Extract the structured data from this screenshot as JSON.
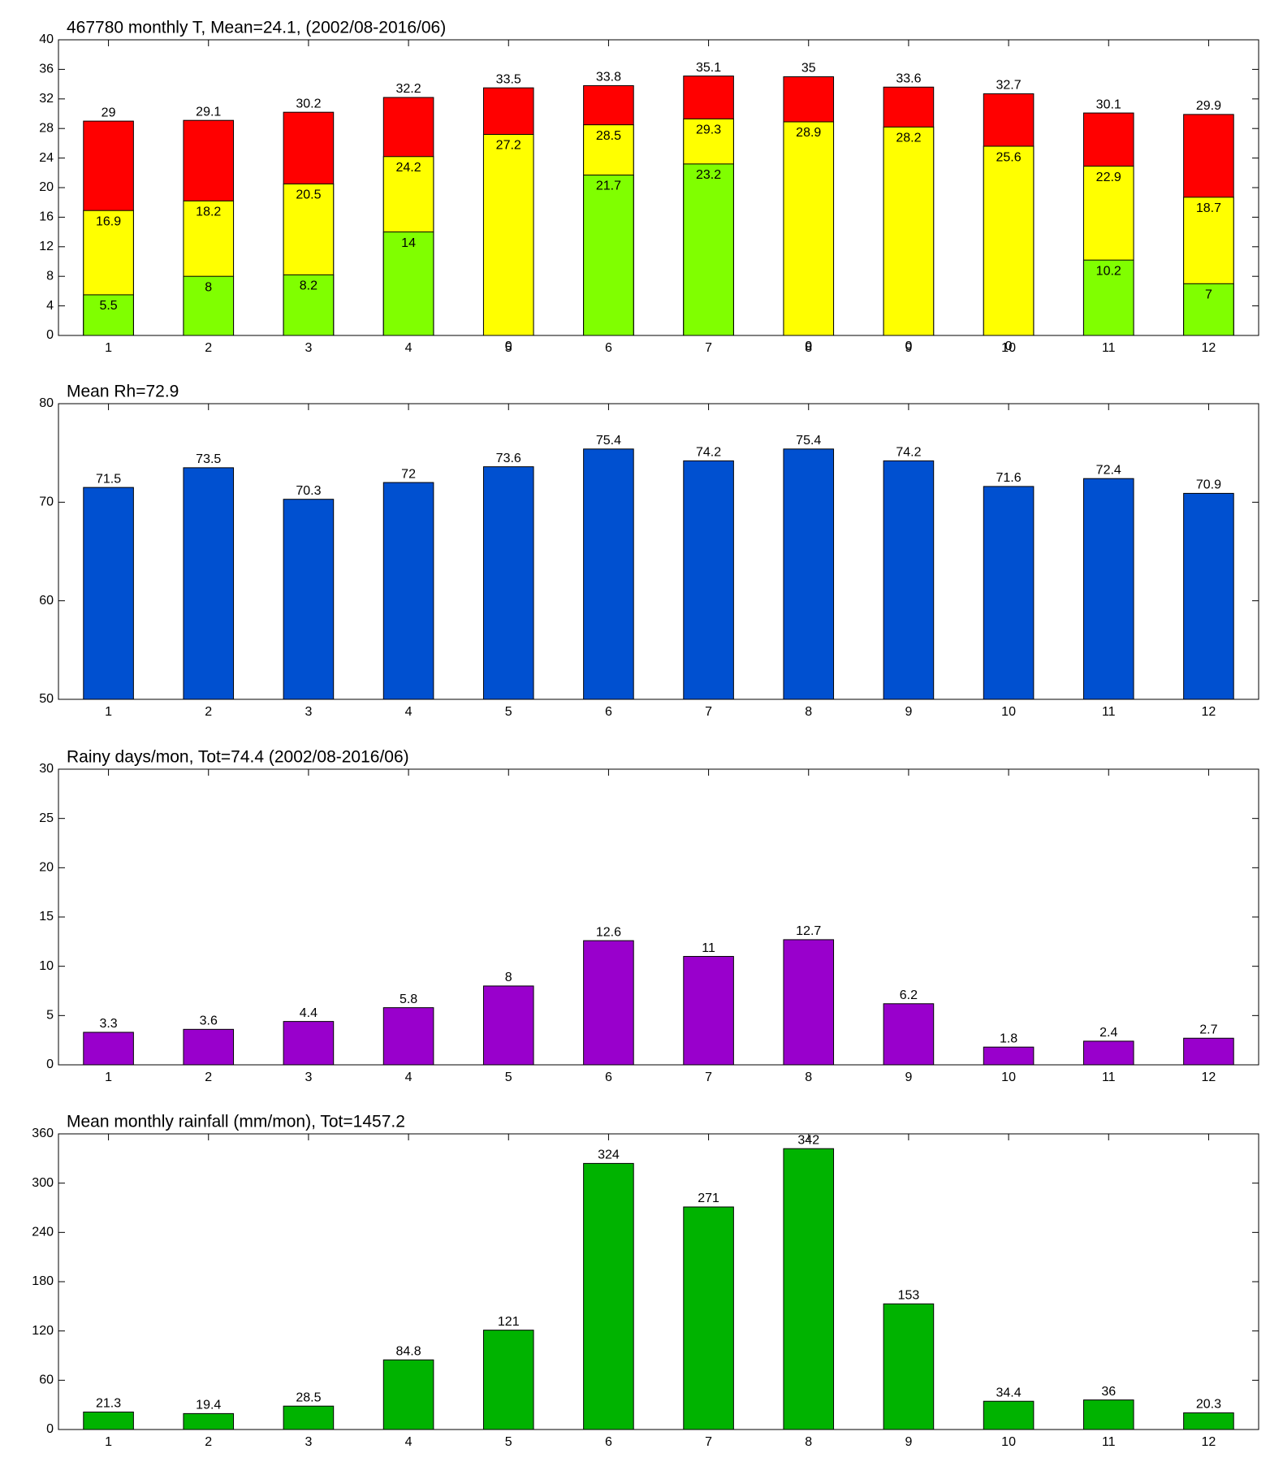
{
  "chart_data": [
    {
      "type": "bar",
      "title": "467780 monthly T, Mean=24.1, (2002/08-2016/06)",
      "categories": [
        "1",
        "2",
        "3",
        "4",
        "5",
        "6",
        "7",
        "8",
        "9",
        "10",
        "11",
        "12"
      ],
      "series": [
        {
          "color": "#ff0000",
          "values": [
            29,
            29.1,
            30.2,
            32.2,
            33.5,
            33.8,
            35.1,
            35,
            33.6,
            32.7,
            30.1,
            29.9
          ]
        },
        {
          "color": "#ffff00",
          "values": [
            16.9,
            18.2,
            20.5,
            24.2,
            27.2,
            28.5,
            29.3,
            28.9,
            28.2,
            25.6,
            22.9,
            18.7
          ]
        },
        {
          "color": "#80ff00",
          "values": [
            5.5,
            8,
            8.2,
            14,
            0,
            21.7,
            23.2,
            0,
            0,
            0,
            10.2,
            7
          ]
        }
      ],
      "ylim": [
        0,
        40
      ],
      "yticks": [
        0,
        4,
        8,
        12,
        16,
        20,
        24,
        28,
        32,
        36,
        40
      ]
    },
    {
      "type": "bar",
      "title": "Mean Rh=72.9",
      "categories": [
        "1",
        "2",
        "3",
        "4",
        "5",
        "6",
        "7",
        "8",
        "9",
        "10",
        "11",
        "12"
      ],
      "values": [
        71.5,
        73.5,
        70.3,
        72,
        73.6,
        75.4,
        74.2,
        75.4,
        74.2,
        71.6,
        72.4,
        70.9
      ],
      "color": "#0050d0",
      "ylim": [
        50,
        80
      ],
      "yticks": [
        50,
        60,
        70,
        80
      ]
    },
    {
      "type": "bar",
      "title": "Rainy days/mon, Tot=74.4 (2002/08-2016/06)",
      "categories": [
        "1",
        "2",
        "3",
        "4",
        "5",
        "6",
        "7",
        "8",
        "9",
        "10",
        "11",
        "12"
      ],
      "values": [
        3.3,
        3.6,
        4.4,
        5.8,
        8,
        12.6,
        11,
        12.7,
        6.2,
        1.8,
        2.4,
        2.7
      ],
      "color": "#9900cc",
      "ylim": [
        0,
        30
      ],
      "yticks": [
        0,
        5,
        10,
        15,
        20,
        25,
        30
      ]
    },
    {
      "type": "bar",
      "title": "Mean monthly rainfall (mm/mon), Tot=1457.2",
      "categories": [
        "1",
        "2",
        "3",
        "4",
        "5",
        "6",
        "7",
        "8",
        "9",
        "10",
        "11",
        "12"
      ],
      "values": [
        21.3,
        19.4,
        28.5,
        84.8,
        121,
        324,
        271,
        342,
        153,
        34.4,
        36,
        20.3
      ],
      "color": "#00b300",
      "ylim": [
        0,
        360
      ],
      "yticks": [
        0,
        60,
        120,
        180,
        240,
        300,
        360
      ]
    }
  ]
}
